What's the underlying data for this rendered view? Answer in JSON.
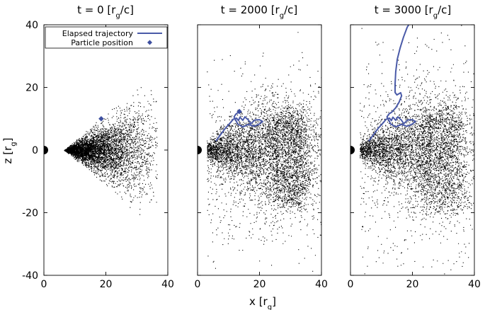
{
  "chart_data": [
    {
      "type": "scatter",
      "title": "t = 0 [r_g/c]",
      "title_text": "t = 0 [r",
      "title_sub": "g",
      "title_tail": "/c]",
      "xlim": [
        0,
        40
      ],
      "ylim": [
        -40,
        40
      ],
      "xticks": [
        0,
        20,
        40
      ],
      "yticks": [
        -40,
        -20,
        0,
        20,
        40
      ],
      "ylabel_text": "z [r",
      "ylabel_sub": "g",
      "ylabel_tail": "]",
      "black_hole": {
        "x": 0,
        "z": 0,
        "color": "#000000"
      },
      "legend": {
        "position": "top",
        "entries": [
          {
            "label": "Elapsed trajectory",
            "marker": "line",
            "color": "#4a5aa8"
          },
          {
            "label": "Particle position",
            "marker": "diamond",
            "color": "#3d4f9f"
          }
        ]
      },
      "particle": {
        "x": 18.5,
        "z": 10
      },
      "trajectory": [],
      "distribution": "cone"
    },
    {
      "type": "scatter",
      "title": "t = 2000 [r_g/c]",
      "title_text": "t = 2000 [r",
      "title_sub": "g",
      "title_tail": "/c]",
      "xlim": [
        0,
        40
      ],
      "ylim": [
        -40,
        40
      ],
      "xticks": [
        0,
        20,
        40
      ],
      "yticks": [
        -40,
        -20,
        0,
        20,
        40
      ],
      "xlabel_text": "x [r",
      "xlabel_sub": "g",
      "xlabel_tail": "]",
      "black_hole": {
        "x": 0,
        "z": 0,
        "color": "#000000"
      },
      "particle": {
        "x": 13.5,
        "z": 12.3
      },
      "trajectory": [
        [
          6,
          3
        ],
        [
          7.5,
          5
        ],
        [
          9,
          7
        ],
        [
          10.3,
          8.4
        ],
        [
          11.5,
          9.8
        ],
        [
          12.6,
          10.2
        ],
        [
          13.2,
          9.4
        ],
        [
          13.7,
          10.5
        ],
        [
          14.6,
          9.5
        ],
        [
          15.3,
          10.6
        ],
        [
          16.4,
          9.6
        ],
        [
          17.2,
          8.4
        ],
        [
          18.5,
          9.6
        ],
        [
          20,
          9.7
        ],
        [
          21,
          9.1
        ],
        [
          19.8,
          8.2
        ],
        [
          18.2,
          7.6
        ],
        [
          16.4,
          8.2
        ],
        [
          14.6,
          7.4
        ],
        [
          13,
          8.3
        ],
        [
          12.3,
          9.6
        ],
        [
          11.8,
          10.6
        ],
        [
          12.4,
          11.5
        ],
        [
          13.3,
          12.1
        ],
        [
          13.5,
          12.3
        ]
      ],
      "distribution": "turbulent"
    },
    {
      "type": "scatter",
      "title": "t = 3000 [r_g/c]",
      "title_text": "t = 3000 [r",
      "title_sub": "g",
      "title_tail": "/c]",
      "xlim": [
        0,
        40
      ],
      "ylim": [
        -40,
        40
      ],
      "xticks": [
        0,
        20,
        40
      ],
      "yticks": [
        -40,
        -20,
        0,
        20,
        40
      ],
      "black_hole": {
        "x": 0,
        "z": 0,
        "color": "#000000"
      },
      "trajectory": [
        [
          6,
          3
        ],
        [
          7.5,
          5
        ],
        [
          9,
          7
        ],
        [
          10.3,
          8.4
        ],
        [
          11.5,
          9.8
        ],
        [
          12.6,
          10.2
        ],
        [
          13.2,
          9.4
        ],
        [
          13.7,
          10.5
        ],
        [
          14.6,
          9.5
        ],
        [
          15.3,
          10.6
        ],
        [
          16.4,
          9.6
        ],
        [
          17.2,
          8.4
        ],
        [
          18.5,
          9.6
        ],
        [
          20,
          9.7
        ],
        [
          21,
          9.1
        ],
        [
          19.8,
          8.2
        ],
        [
          18.2,
          7.6
        ],
        [
          16.4,
          8.2
        ],
        [
          14.6,
          7.4
        ],
        [
          13,
          8.3
        ],
        [
          12.3,
          9.6
        ],
        [
          11.8,
          10.6
        ],
        [
          12.4,
          11.5
        ],
        [
          13.3,
          12.1
        ],
        [
          14.6,
          13.5
        ],
        [
          15.7,
          15.3
        ],
        [
          16.5,
          17.3
        ],
        [
          16.2,
          18.3
        ],
        [
          15,
          17.6
        ],
        [
          14.4,
          18.4
        ],
        [
          14.4,
          21
        ],
        [
          14.6,
          25
        ],
        [
          15.1,
          29
        ],
        [
          16,
          32.5
        ],
        [
          17.1,
          36
        ],
        [
          18.3,
          39.2
        ],
        [
          18.8,
          40
        ]
      ],
      "distribution": "turbulent_wide"
    }
  ]
}
